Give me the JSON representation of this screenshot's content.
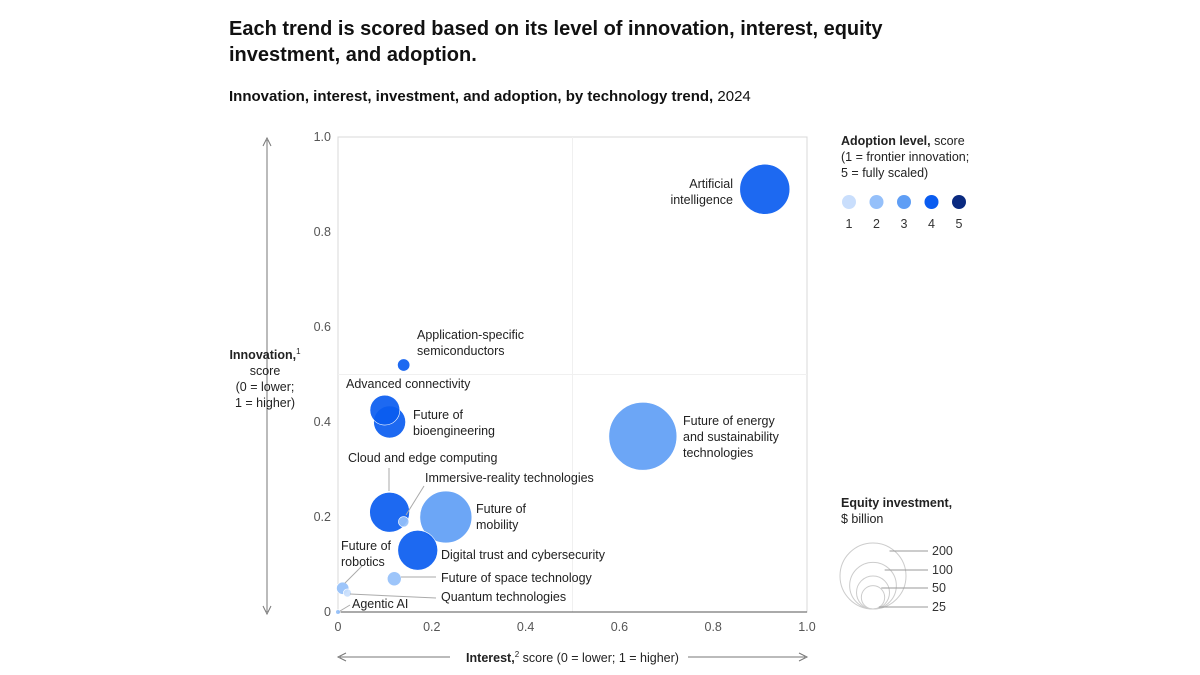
{
  "title": "Each trend is scored based on its level of innovation, interest, equity investment, and adoption.",
  "subtitle_bold": "Innovation, interest, investment, and adoption, by technology trend,",
  "subtitle_year": "2024",
  "chart_data": {
    "type": "scatter",
    "subtype": "bubble",
    "xlabel_bold": "Interest,",
    "xlabel_sup": "2",
    "xlabel_rest": "score (0 = lower; 1 = higher)",
    "ylabel_bold": "Innovation,",
    "ylabel_sup": "1",
    "ylabel_rest": [
      "score",
      "(0 = lower;",
      "1 = higher)"
    ],
    "xlim": [
      0,
      1
    ],
    "ylim": [
      0,
      1
    ],
    "xticks": [
      "0",
      "0.2",
      "0.4",
      "0.6",
      "0.8",
      "1.0"
    ],
    "yticks": [
      "0",
      "0.2",
      "0.4",
      "0.6",
      "0.8",
      "1.0"
    ],
    "points": [
      {
        "name": "Artificial intelligence",
        "lines": [
          "Artificial",
          "intelligence"
        ],
        "interest": 0.91,
        "innovation": 0.89,
        "investment": 115,
        "adoption": 4
      },
      {
        "name": "Application-specific semiconductors",
        "lines": [
          "Application-specific",
          "semiconductors"
        ],
        "interest": 0.14,
        "innovation": 0.52,
        "investment": 7,
        "adoption": 4
      },
      {
        "name": "Advanced connectivity",
        "lines": [
          "Advanced connectivity"
        ],
        "interest": 0.1,
        "innovation": 0.425,
        "investment": 41,
        "adoption": 4
      },
      {
        "name": "Future of bioengineering",
        "lines": [
          "Future of",
          "bioengineering"
        ],
        "interest": 0.11,
        "innovation": 0.4,
        "investment": 47,
        "adoption": 4
      },
      {
        "name": "Future of energy and sustainability technologies",
        "lines": [
          "Future of energy",
          "and sustainability",
          "technologies"
        ],
        "interest": 0.65,
        "innovation": 0.37,
        "investment": 212,
        "adoption": 3
      },
      {
        "name": "Cloud and edge computing",
        "lines": [
          "Cloud and edge computing"
        ],
        "interest": 0.11,
        "innovation": 0.21,
        "investment": 73,
        "adoption": 4
      },
      {
        "name": "Immersive-reality technologies",
        "lines": [
          "Immersive-reality technologies"
        ],
        "interest": 0.14,
        "innovation": 0.19,
        "investment": 5,
        "adoption": 2
      },
      {
        "name": "Future of mobility",
        "lines": [
          "Future of",
          "mobility"
        ],
        "interest": 0.23,
        "innovation": 0.2,
        "investment": 124,
        "adoption": 3
      },
      {
        "name": "Digital trust and cybersecurity",
        "lines": [
          "Digital trust and cybersecurity"
        ],
        "interest": 0.17,
        "innovation": 0.13,
        "investment": 73,
        "adoption": 4
      },
      {
        "name": "Future of space technology",
        "lines": [
          "Future of space technology"
        ],
        "interest": 0.12,
        "innovation": 0.07,
        "investment": 9,
        "adoption": 2
      },
      {
        "name": "Future of robotics",
        "lines": [
          "Future of",
          "robotics"
        ],
        "interest": 0.01,
        "innovation": 0.05,
        "investment": 7,
        "adoption": 2
      },
      {
        "name": "Quantum technologies",
        "lines": [
          "Quantum technologies"
        ],
        "interest": 0.02,
        "innovation": 0.04,
        "investment": 3,
        "adoption": 1
      },
      {
        "name": "Agentic AI",
        "lines": [
          "Agentic AI"
        ],
        "interest": 0.0,
        "innovation": 0.0,
        "investment": 1,
        "adoption": 2
      }
    ],
    "adoption_legend": {
      "title_bold": "Adoption level,",
      "title_rest": "score",
      "lines": [
        "(1 = frontier innovation;",
        "5 = fully scaled)"
      ],
      "levels": [
        "1",
        "2",
        "3",
        "4",
        "5"
      ],
      "colors": [
        "#c9defc",
        "#95c0fa",
        "#5f9ef5",
        "#0a5cf0",
        "#0a2a80"
      ]
    },
    "size_legend": {
      "title_bold": "Equity investment,",
      "title_rest": "$ billion",
      "values": [
        200,
        100,
        50,
        25
      ],
      "labels": [
        "200",
        "100",
        "50",
        "25"
      ]
    }
  }
}
